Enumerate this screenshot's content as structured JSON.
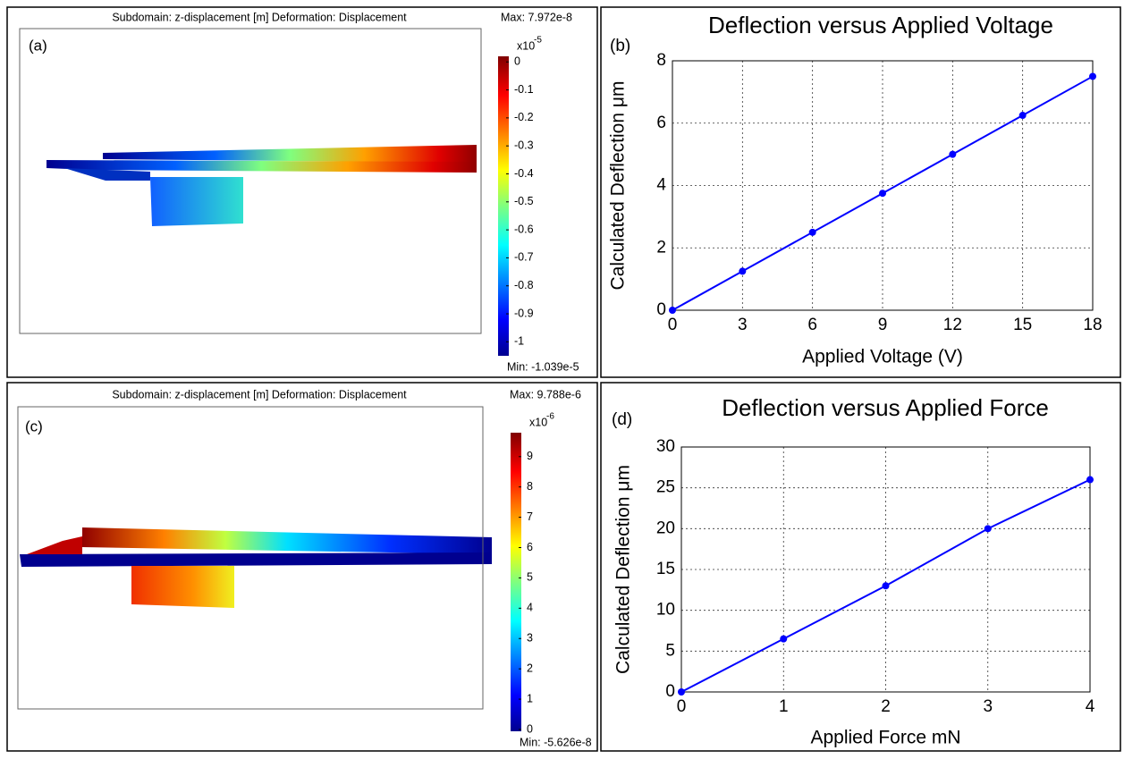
{
  "simulations": [
    {
      "panel_label": "(a)",
      "header": "Subdomain: z-displacement [m]    Deformation: Displacement",
      "max_label": "Max: 7.972e-8",
      "min_label": "Min: -1.039e-5",
      "exponent_base": "x10",
      "exponent": "-5",
      "clim": [
        -1.05,
        0.02
      ],
      "cticks": [
        0,
        -0.1,
        -0.2,
        -0.3,
        -0.4,
        -0.5,
        -0.6,
        -0.7,
        -0.8,
        -0.9,
        -1
      ]
    },
    {
      "panel_label": "(c)",
      "header": "Subdomain: z-displacement [m]    Deformation: Displacement",
      "max_label": "Max: 9.788e-6",
      "min_label": "Min: -5.626e-8",
      "exponent_base": "x10",
      "exponent": "-6",
      "clim": [
        -0.06,
        9.79
      ],
      "cticks": [
        0,
        1,
        2,
        3,
        4,
        5,
        6,
        7,
        8,
        9
      ]
    }
  ],
  "chart_data": [
    {
      "type": "line",
      "panel_label": "(b)",
      "title": "Deflection versus Applied Voltage",
      "x_label": "Applied Voltage (V)",
      "y_label": "Calculated Deflection μm",
      "x": [
        0,
        3,
        6,
        9,
        12,
        15,
        18
      ],
      "values": [
        0,
        1.25,
        2.5,
        3.75,
        5,
        6.25,
        7.5
      ],
      "color": "#0000ff",
      "xlim": [
        0,
        18
      ],
      "ylim": [
        0,
        8
      ],
      "xticks": [
        0,
        3,
        6,
        9,
        12,
        15,
        18
      ],
      "yticks": [
        0,
        2,
        4,
        6,
        8
      ],
      "grid": true
    },
    {
      "type": "line",
      "panel_label": "(d)",
      "title": "Deflection versus Applied Force",
      "x_label": "Applied Force mN",
      "y_label": "Calculated Deflection μm",
      "x": [
        0,
        1,
        2,
        3,
        4
      ],
      "values": [
        0,
        6.5,
        13,
        20,
        26
      ],
      "color": "#0000ff",
      "xlim": [
        0,
        4
      ],
      "ylim": [
        0,
        30
      ],
      "xticks": [
        0,
        1,
        2,
        3,
        4
      ],
      "yticks": [
        0,
        5,
        10,
        15,
        20,
        25,
        30
      ],
      "grid": true
    }
  ]
}
